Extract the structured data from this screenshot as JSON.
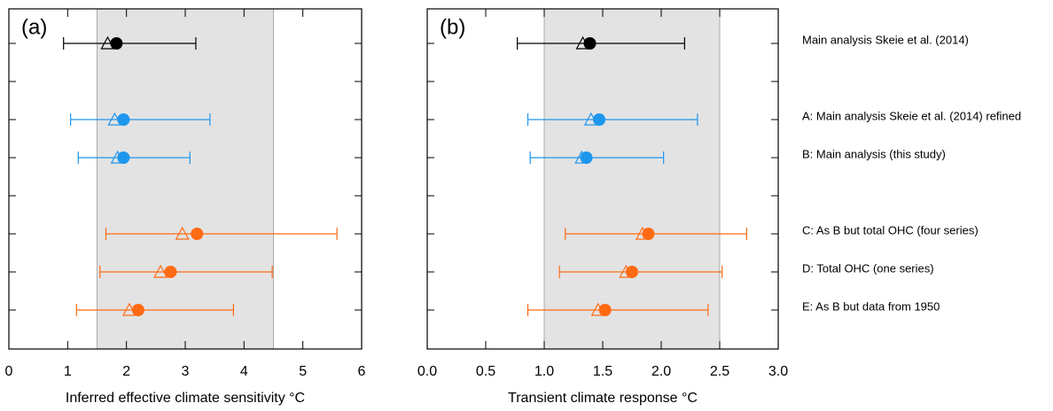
{
  "chart_data": [
    {
      "type": "errorbar",
      "panel_label": "(a)",
      "xlabel": "Inferred effective climate sensitivity °C",
      "categories": [
        "Main analysis Skeie et al. (2014)",
        null,
        "A: Main analysis Skeie et al. (2014) refined",
        "B: Main analysis (this study)",
        null,
        "C: As B but total OHC (four series)",
        "D: Total OHC (one series)",
        "E: As B but data from 1950"
      ],
      "colors": [
        "#000000",
        null,
        "#1e96ee",
        "#1e96ee",
        null,
        "#ff6a13",
        "#ff6a13",
        "#ff6a13"
      ],
      "best": [
        1.83,
        null,
        1.95,
        1.95,
        null,
        3.2,
        2.75,
        2.2
      ],
      "alt": [
        1.68,
        null,
        1.8,
        1.85,
        null,
        2.95,
        2.58,
        2.05
      ],
      "low": [
        0.93,
        null,
        1.05,
        1.18,
        null,
        1.65,
        1.55,
        1.15
      ],
      "high": [
        3.18,
        null,
        3.42,
        3.08,
        null,
        5.58,
        4.48,
        3.82
      ],
      "band": [
        1.5,
        4.5
      ],
      "band_color": "#e3e3e3",
      "xlim": [
        0,
        6
      ],
      "xticks": [
        0,
        1,
        2,
        3,
        4,
        5,
        6
      ]
    },
    {
      "type": "errorbar",
      "panel_label": "(b)",
      "xlabel": "Transient climate response °C",
      "colors": [
        "#000000",
        null,
        "#1e96ee",
        "#1e96ee",
        null,
        "#ff6a13",
        "#ff6a13",
        "#ff6a13"
      ],
      "best": [
        1.39,
        null,
        1.47,
        1.36,
        null,
        1.89,
        1.75,
        1.52
      ],
      "alt": [
        1.33,
        null,
        1.4,
        1.32,
        null,
        1.84,
        1.7,
        1.46
      ],
      "low": [
        0.77,
        null,
        0.86,
        0.88,
        null,
        1.18,
        1.13,
        0.86
      ],
      "high": [
        2.2,
        null,
        2.31,
        2.02,
        null,
        2.73,
        2.52,
        2.4
      ],
      "band": [
        1.0,
        2.5
      ],
      "band_color": "#e3e3e3",
      "xlim": [
        0,
        3
      ],
      "xticks": [
        {
          "value": 0,
          "label": "0.0"
        },
        {
          "value": 0.5,
          "label": "0.5"
        },
        {
          "value": 1,
          "label": "1.0"
        },
        {
          "value": 1.5,
          "label": "1.5"
        },
        {
          "value": 2,
          "label": "2.0"
        },
        {
          "value": 2.5,
          "label": "2.5"
        },
        {
          "value": 3,
          "label": "3.0"
        }
      ]
    }
  ]
}
